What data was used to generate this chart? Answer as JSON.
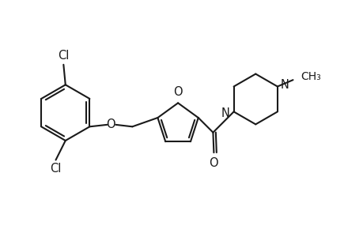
{
  "background_color": "#ffffff",
  "line_color": "#1a1a1a",
  "line_width": 1.5,
  "font_size": 10.5,
  "figsize": [
    4.6,
    3.0
  ],
  "dpi": 100,
  "xlim": [
    0,
    9.2
  ],
  "ylim": [
    0,
    6.0
  ]
}
